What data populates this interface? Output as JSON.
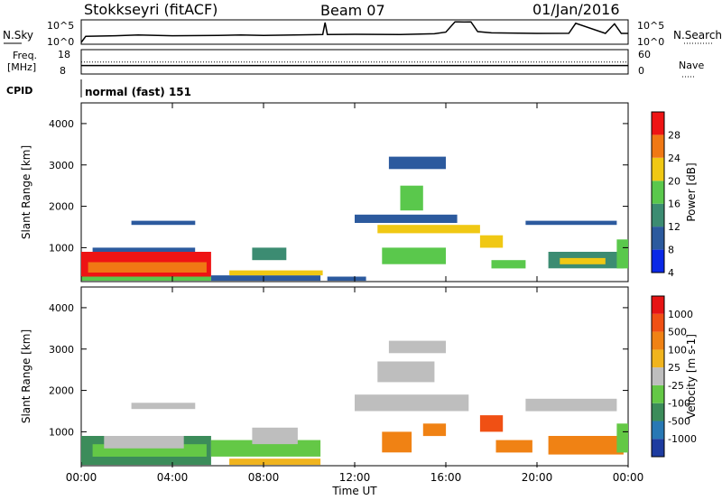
{
  "header": {
    "station": "Stokkseyri (fitACF)",
    "beam": "Beam 07",
    "date": "01/Jan/2016"
  },
  "noise_panel": {
    "left_label": "N.Sky",
    "right_label": "N.Search",
    "left_ticks": [
      "10^5",
      "10^0"
    ],
    "right_ticks": [
      "10^5",
      "10^0"
    ]
  },
  "freq_panel": {
    "left_label": "Freq.",
    "left_unit": "[MHz]",
    "left_ticks": [
      "18",
      "8"
    ],
    "right_label": "Nave",
    "right_ticks": [
      "60",
      "0"
    ]
  },
  "cpid": {
    "label": "CPID",
    "mode": "normal (fast) 151"
  },
  "x_axis": {
    "label": "Time UT",
    "ticks": [
      "00:00",
      "04:00",
      "08:00",
      "12:00",
      "16:00",
      "20:00",
      "00:00"
    ]
  },
  "power_panel": {
    "ylabel": "Slant Range [km]",
    "yticks": [
      "4000",
      "3000",
      "2000",
      "1000"
    ],
    "colorbar_label": "Power [dB]",
    "colorbar_ticks": [
      "28",
      "24",
      "20",
      "16",
      "12",
      "8",
      "4"
    ],
    "colors": [
      "#0a28e6",
      "#2c5a9e",
      "#3c8c72",
      "#5ac84c",
      "#f0c814",
      "#f07814",
      "#ee1414"
    ]
  },
  "velocity_panel": {
    "ylabel": "Slant Range [km]",
    "yticks": [
      "4000",
      "3000",
      "2000",
      "1000"
    ],
    "colorbar_label": "Velocity [m s-1]",
    "colorbar_ticks": [
      "1000",
      "500",
      "100",
      "25",
      "-25",
      "-100",
      "-500",
      "-1000"
    ],
    "colors": [
      "#1e3ca0",
      "#2878b4",
      "#3c8c5a",
      "#64c846",
      "#bebebe",
      "#f0b41e",
      "#f08214",
      "#f05014",
      "#e61414"
    ]
  },
  "chart_data": [
    {
      "type": "line",
      "title": "N.Sky / N.Search",
      "y_scale": "log",
      "ylim": [
        1,
        100000
      ],
      "series": [
        {
          "name": "N.Sky",
          "x": [
            0,
            0.2,
            1.5,
            2.5,
            4,
            6,
            7,
            8,
            10,
            10.6,
            10.7,
            10.8,
            12,
            14,
            15.5,
            16,
            16.4,
            16.8,
            17.1,
            17.4,
            18,
            20,
            21.4,
            21.7,
            23,
            23.4,
            23.7,
            24
          ],
          "y": [
            1,
            30,
            40,
            60,
            40,
            50,
            60,
            50,
            70,
            80,
            60000,
            80,
            90,
            80,
            120,
            300,
            90000,
            80000,
            90000,
            400,
            200,
            150,
            160,
            40000,
            150,
            30000,
            150,
            150
          ]
        }
      ]
    },
    {
      "type": "line",
      "title": "Freq. / Nave",
      "ylim": [
        8,
        18
      ],
      "series": [
        {
          "name": "Freq.",
          "x": [
            0,
            24
          ],
          "y": [
            12.5,
            12.5
          ]
        },
        {
          "name": "Nave",
          "x": [
            0,
            24
          ],
          "y": [
            12,
            12
          ]
        }
      ]
    },
    {
      "type": "heatmap",
      "title": "Power [dB]",
      "xlabel": "Time UT",
      "ylabel": "Slant Range [km]",
      "xlim": [
        0,
        24
      ],
      "ylim": [
        180,
        4500
      ],
      "color_levels": [
        4,
        8,
        12,
        16,
        20,
        24,
        28
      ],
      "cells": [
        {
          "t0": 0.0,
          "t1": 5.7,
          "r0": 300,
          "r1": 900,
          "c": 6
        },
        {
          "t0": 0.3,
          "t1": 5.5,
          "r0": 400,
          "r1": 650,
          "c": 5
        },
        {
          "t0": 0.0,
          "t1": 5.7,
          "r0": 200,
          "r1": 300,
          "c": 3
        },
        {
          "t0": 0.5,
          "t1": 5.0,
          "r0": 900,
          "r1": 1000,
          "c": 1
        },
        {
          "t0": 2.2,
          "t1": 5.0,
          "r0": 1550,
          "r1": 1650,
          "c": 1
        },
        {
          "t0": 5.7,
          "t1": 10.5,
          "r0": 200,
          "r1": 330,
          "c": 1
        },
        {
          "t0": 6.5,
          "t1": 10.6,
          "r0": 330,
          "r1": 450,
          "c": 4
        },
        {
          "t0": 7.5,
          "t1": 9.0,
          "r0": 700,
          "r1": 1000,
          "c": 2
        },
        {
          "t0": 10.8,
          "t1": 12.5,
          "r0": 200,
          "r1": 300,
          "c": 1
        },
        {
          "t0": 12.0,
          "t1": 16.5,
          "r0": 1600,
          "r1": 1800,
          "c": 1
        },
        {
          "t0": 13.0,
          "t1": 17.5,
          "r0": 1350,
          "r1": 1550,
          "c": 4
        },
        {
          "t0": 14.0,
          "t1": 15.0,
          "r0": 1900,
          "r1": 2500,
          "c": 3
        },
        {
          "t0": 13.2,
          "t1": 16.0,
          "r0": 600,
          "r1": 1000,
          "c": 3
        },
        {
          "t0": 13.5,
          "t1": 16.0,
          "r0": 2900,
          "r1": 3200,
          "c": 1
        },
        {
          "t0": 17.5,
          "t1": 18.5,
          "r0": 1000,
          "r1": 1300,
          "c": 4
        },
        {
          "t0": 18.0,
          "t1": 19.5,
          "r0": 500,
          "r1": 700,
          "c": 3
        },
        {
          "t0": 19.5,
          "t1": 23.5,
          "r0": 1550,
          "r1": 1650,
          "c": 1
        },
        {
          "t0": 20.5,
          "t1": 23.8,
          "r0": 500,
          "r1": 900,
          "c": 2
        },
        {
          "t0": 21.0,
          "t1": 23.0,
          "r0": 600,
          "r1": 750,
          "c": 4
        },
        {
          "t0": 23.5,
          "t1": 24.0,
          "r0": 500,
          "r1": 1200,
          "c": 3
        }
      ]
    },
    {
      "type": "heatmap",
      "title": "Velocity [m s-1]",
      "xlabel": "Time UT",
      "ylabel": "Slant Range [km]",
      "xlim": [
        0,
        24
      ],
      "ylim": [
        180,
        4500
      ],
      "color_levels": [
        1000,
        500,
        100,
        25,
        -25,
        -100,
        -500,
        -1000
      ],
      "cells": [
        {
          "t0": 0.0,
          "t1": 5.7,
          "r0": 200,
          "r1": 900,
          "c": 2
        },
        {
          "t0": 0.5,
          "t1": 5.5,
          "r0": 400,
          "r1": 700,
          "c": 3
        },
        {
          "t0": 1.0,
          "t1": 4.5,
          "r0": 600,
          "r1": 900,
          "c": 4
        },
        {
          "t0": 2.2,
          "t1": 5.0,
          "r0": 1550,
          "r1": 1700,
          "c": 4
        },
        {
          "t0": 5.7,
          "t1": 10.5,
          "r0": 400,
          "r1": 800,
          "c": 3
        },
        {
          "t0": 6.5,
          "t1": 10.5,
          "r0": 200,
          "r1": 350,
          "c": 5
        },
        {
          "t0": 7.5,
          "t1": 9.5,
          "r0": 700,
          "r1": 1100,
          "c": 4
        },
        {
          "t0": 12.0,
          "t1": 17.0,
          "r0": 1500,
          "r1": 1900,
          "c": 4
        },
        {
          "t0": 13.0,
          "t1": 15.5,
          "r0": 2200,
          "r1": 2700,
          "c": 4
        },
        {
          "t0": 13.5,
          "t1": 16.0,
          "r0": 2900,
          "r1": 3200,
          "c": 4
        },
        {
          "t0": 13.2,
          "t1": 14.5,
          "r0": 500,
          "r1": 1000,
          "c": 6
        },
        {
          "t0": 15.0,
          "t1": 16.0,
          "r0": 900,
          "r1": 1200,
          "c": 6
        },
        {
          "t0": 17.5,
          "t1": 18.5,
          "r0": 1000,
          "r1": 1400,
          "c": 7
        },
        {
          "t0": 18.2,
          "t1": 19.8,
          "r0": 500,
          "r1": 800,
          "c": 6
        },
        {
          "t0": 19.5,
          "t1": 23.5,
          "r0": 1500,
          "r1": 1800,
          "c": 4
        },
        {
          "t0": 20.5,
          "t1": 23.8,
          "r0": 450,
          "r1": 900,
          "c": 6
        },
        {
          "t0": 23.5,
          "t1": 24.0,
          "r0": 500,
          "r1": 1200,
          "c": 3
        }
      ]
    }
  ]
}
